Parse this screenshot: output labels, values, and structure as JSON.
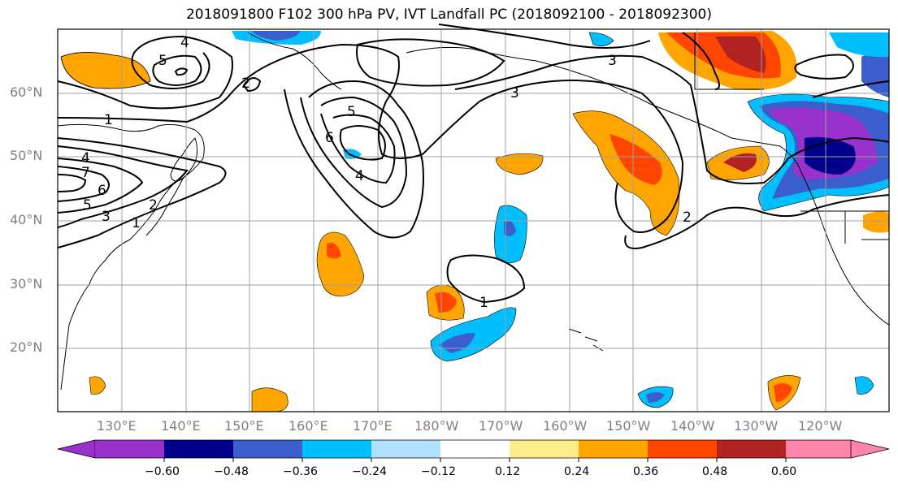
{
  "title": "2018091800 F102 300 hPa PV, IVT Landfall PC (2018092100 - 2018092300)",
  "lat_labels": [
    "60°N",
    "50°N",
    "40°N",
    "30°N",
    "20°N"
  ],
  "lon_labels": [
    "130°E",
    "140°E",
    "150°E",
    "160°E",
    "170°E",
    "180°W",
    "170°W",
    "160°W",
    "150°W",
    "140°W",
    "130°W",
    "120°W"
  ],
  "contour_labels": [
    "1",
    "2",
    "3",
    "4",
    "5",
    "6",
    "7"
  ],
  "colorbar": {
    "ticks": [
      "−0.60",
      "−0.48",
      "−0.36",
      "−0.24",
      "−0.12",
      "0.12",
      "0.24",
      "0.36",
      "0.48",
      "0.60"
    ],
    "colors": [
      "#9932cc",
      "#00008b",
      "#3a5fcd",
      "#00bfff",
      "#b0e2ff",
      "#ffffff",
      "#ffec8b",
      "#ffa500",
      "#ff4500",
      "#b22222",
      "#ff83ab"
    ]
  },
  "colors": {
    "grid": "#a0a0a0",
    "contour": "#000000",
    "label": "#808080"
  }
}
